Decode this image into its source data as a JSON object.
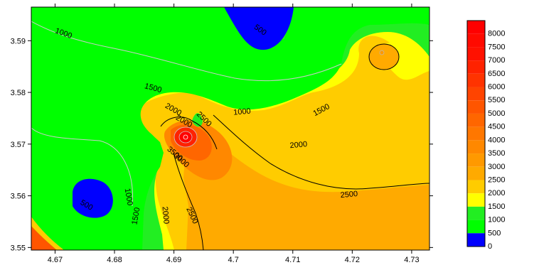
{
  "chart_data": {
    "type": "contour",
    "title": "",
    "xlabel": "",
    "ylabel": "",
    "xlim": [
      4.666,
      4.733
    ],
    "ylim": [
      3.5495,
      3.5965
    ],
    "x_ticks": [
      {
        "value": 4.67,
        "label": "4.67"
      },
      {
        "value": 4.68,
        "label": "4.68"
      },
      {
        "value": 4.69,
        "label": "4.69"
      },
      {
        "value": 4.7,
        "label": "4.7"
      },
      {
        "value": 4.71,
        "label": "4.71"
      },
      {
        "value": 4.72,
        "label": "4.72"
      },
      {
        "value": 4.73,
        "label": "4.73"
      }
    ],
    "y_ticks": [
      {
        "value": 3.55,
        "label": "3.55"
      },
      {
        "value": 3.56,
        "label": "3.56"
      },
      {
        "value": 3.57,
        "label": "3.57"
      },
      {
        "value": 3.58,
        "label": "3.58"
      },
      {
        "value": 3.59,
        "label": "3.59"
      }
    ],
    "legend": {
      "placement": "right",
      "levels": [
        {
          "value": 0,
          "label": "0",
          "color": "#0000ff"
        },
        {
          "value": 500,
          "label": "500",
          "color": "#00ff00"
        },
        {
          "value": 1000,
          "label": "1000",
          "color": "#22ee22"
        },
        {
          "value": 1500,
          "label": "1500",
          "color": "#ffff00"
        },
        {
          "value": 2000,
          "label": "2000",
          "color": "#ffcc00"
        },
        {
          "value": 2500,
          "label": "2500",
          "color": "#ffaa00"
        },
        {
          "value": 3000,
          "label": "3000",
          "color": "#ff9900"
        },
        {
          "value": 3500,
          "label": "3500",
          "color": "#ff8800"
        },
        {
          "value": 4000,
          "label": "4000",
          "color": "#ff7700"
        },
        {
          "value": 4500,
          "label": "4500",
          "color": "#ff6600"
        },
        {
          "value": 5000,
          "label": "5000",
          "color": "#ff5500"
        },
        {
          "value": 5500,
          "label": "5500",
          "color": "#ff4400"
        },
        {
          "value": 6000,
          "label": "6000",
          "color": "#ff3300"
        },
        {
          "value": 6500,
          "label": "6500",
          "color": "#ff2200"
        },
        {
          "value": 7000,
          "label": "7000",
          "color": "#ff1100"
        },
        {
          "value": 7500,
          "label": "7500",
          "color": "#ff0a00"
        },
        {
          "value": 8000,
          "label": "8000",
          "color": "#ff0000"
        }
      ]
    },
    "contour_labels": [
      {
        "text": "1000",
        "x": 4.6713,
        "y": 3.591,
        "rotate": 20
      },
      {
        "text": "500",
        "x": 4.7043,
        "y": 3.5917,
        "rotate": 35
      },
      {
        "text": "1500",
        "x": 4.6864,
        "y": 3.5804,
        "rotate": 15
      },
      {
        "text": "1000",
        "x": 4.7015,
        "y": 3.5758,
        "rotate": -5
      },
      {
        "text": "1500",
        "x": 4.715,
        "y": 3.5762,
        "rotate": -28
      },
      {
        "text": "2000",
        "x": 4.6897,
        "y": 3.5763,
        "rotate": 30
      },
      {
        "text": "2500",
        "x": 4.6948,
        "y": 3.5745,
        "rotate": 45
      },
      {
        "text": "2000",
        "x": 4.6915,
        "y": 3.574,
        "rotate": 30
      },
      {
        "text": "3500",
        "x": 4.6899,
        "y": 3.5678,
        "rotate": 40
      },
      {
        "text": "3000",
        "x": 4.691,
        "y": 3.5665,
        "rotate": 40
      },
      {
        "text": "2000",
        "x": 4.711,
        "y": 3.5694,
        "rotate": -5
      },
      {
        "text": "1000",
        "x": 4.682,
        "y": 3.5597,
        "rotate": 80
      },
      {
        "text": "500",
        "x": 4.6751,
        "y": 3.5578,
        "rotate": 30
      },
      {
        "text": "1500",
        "x": 4.684,
        "y": 3.556,
        "rotate": -80
      },
      {
        "text": "2000",
        "x": 4.6882,
        "y": 3.5562,
        "rotate": 85
      },
      {
        "text": "2500",
        "x": 4.6927,
        "y": 3.556,
        "rotate": 65
      },
      {
        "text": "2500",
        "x": 4.7195,
        "y": 3.5598,
        "rotate": -5
      }
    ]
  }
}
